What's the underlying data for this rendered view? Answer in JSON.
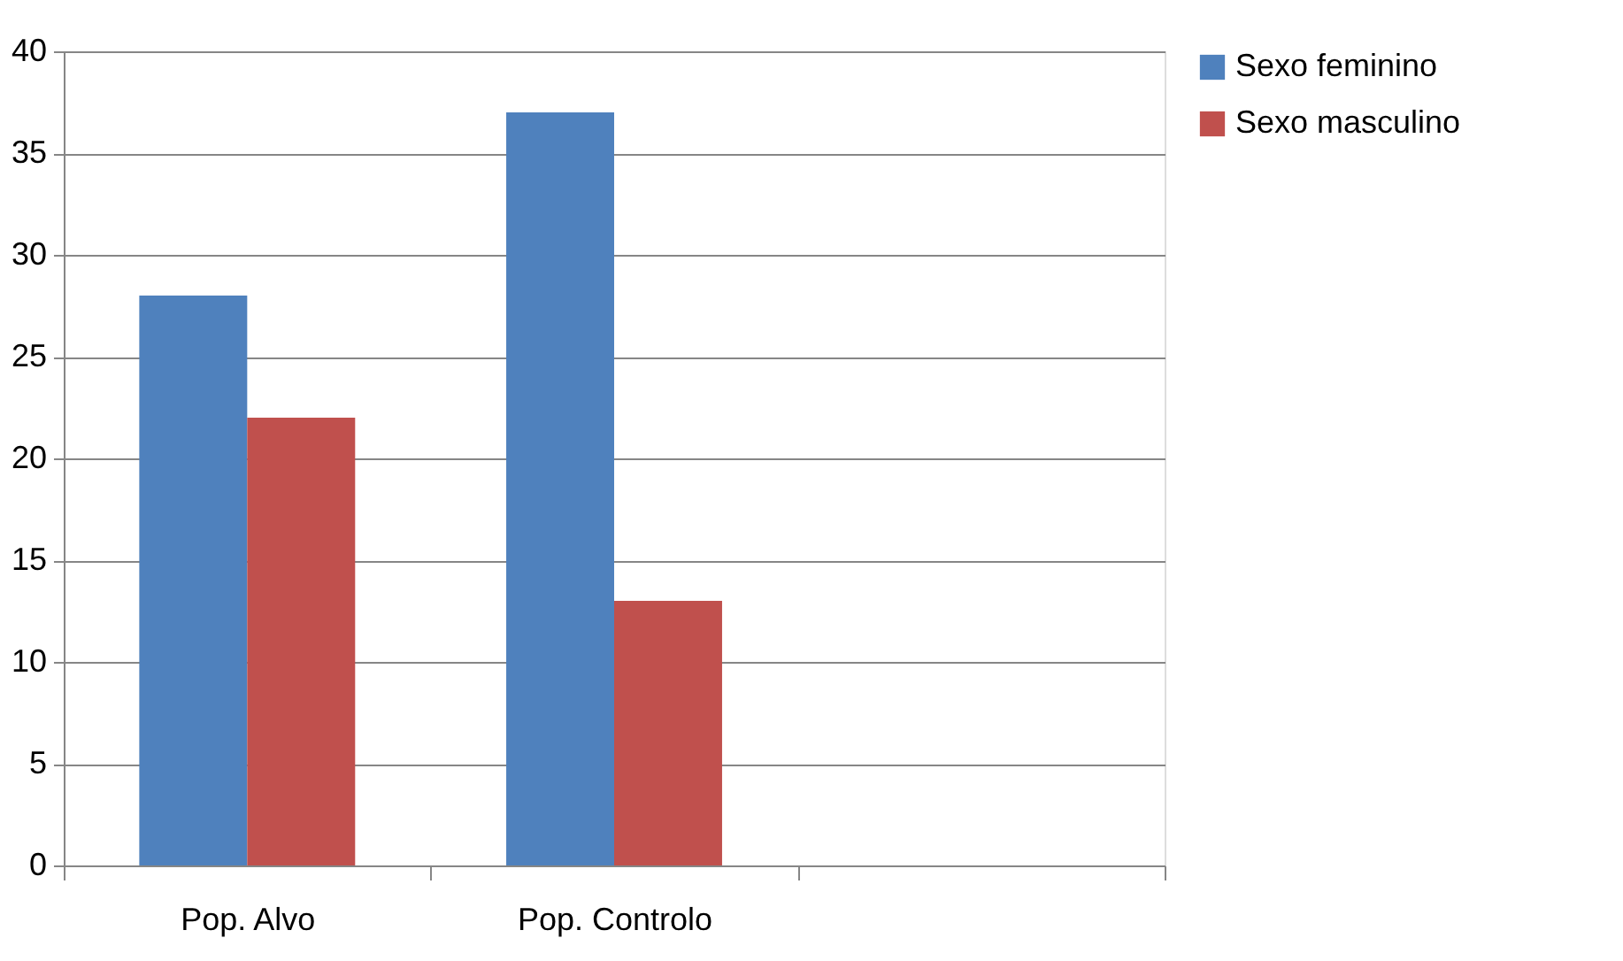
{
  "chart_data": {
    "type": "bar",
    "categories": [
      "Pop. Alvo",
      "Pop. Controlo",
      null
    ],
    "series": [
      {
        "name": "Sexo feminino",
        "color": "#4f81bd",
        "values": [
          28,
          37,
          null
        ]
      },
      {
        "name": "Sexo masculino",
        "color": "#c0504d",
        "values": [
          22,
          13,
          null
        ]
      }
    ],
    "ylim": [
      0,
      40
    ],
    "yticks": [
      0,
      5,
      10,
      15,
      20,
      25,
      30,
      35,
      40
    ],
    "grid": "y",
    "legend": "right"
  }
}
